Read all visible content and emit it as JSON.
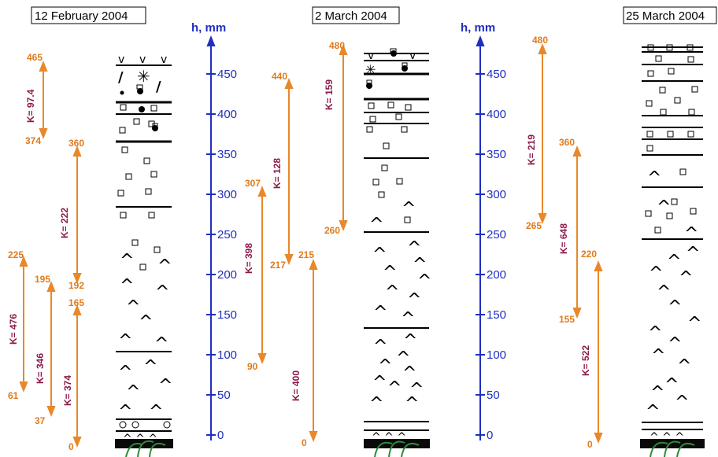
{
  "colors": {
    "arrow": "#e8882a",
    "label": "#e07b1c",
    "k_label": "#8b1a4a",
    "axis": "#1f2fbf",
    "ground": "#0a0a0a",
    "grass": "#2e8b3a"
  },
  "axis_title": "h, mm",
  "panels": [
    {
      "date": "12 February 2004",
      "ticks": [
        "450",
        "400",
        "350",
        "300",
        "250",
        "200",
        "150",
        "100",
        "50",
        "0"
      ],
      "arrows": [
        {
          "top": "465",
          "bottom": "374",
          "k": "K= 97.4"
        },
        {
          "top": "360",
          "bottom": "192",
          "k": "K= 222"
        },
        {
          "top": "225",
          "bottom": "61",
          "k": "K= 476"
        },
        {
          "top": "195",
          "bottom": "37",
          "k": "K= 346"
        },
        {
          "top": "165",
          "bottom": "0",
          "k": "K= 374"
        },
        {
          "top": "307",
          "bottom": "90",
          "k": "K= 398"
        }
      ]
    },
    {
      "date": "2 March 2004",
      "ticks": [
        "450",
        "400",
        "350",
        "300",
        "250",
        "200",
        "150",
        "100",
        "50",
        "0"
      ],
      "arrows": [
        {
          "top": "440",
          "bottom": "217",
          "k": "K= 128"
        },
        {
          "top": "480",
          "bottom": "260",
          "k": "K= 159"
        },
        {
          "top": "215",
          "bottom": "0",
          "k": "K= 400"
        }
      ]
    },
    {
      "date": "25 March 2004",
      "arrows": [
        {
          "top": "480",
          "bottom": "265",
          "k": "K= 219"
        },
        {
          "top": "360",
          "bottom": "155",
          "k": "K= 648"
        },
        {
          "top": "220",
          "bottom": "0",
          "k": "K= 522"
        }
      ]
    }
  ]
}
